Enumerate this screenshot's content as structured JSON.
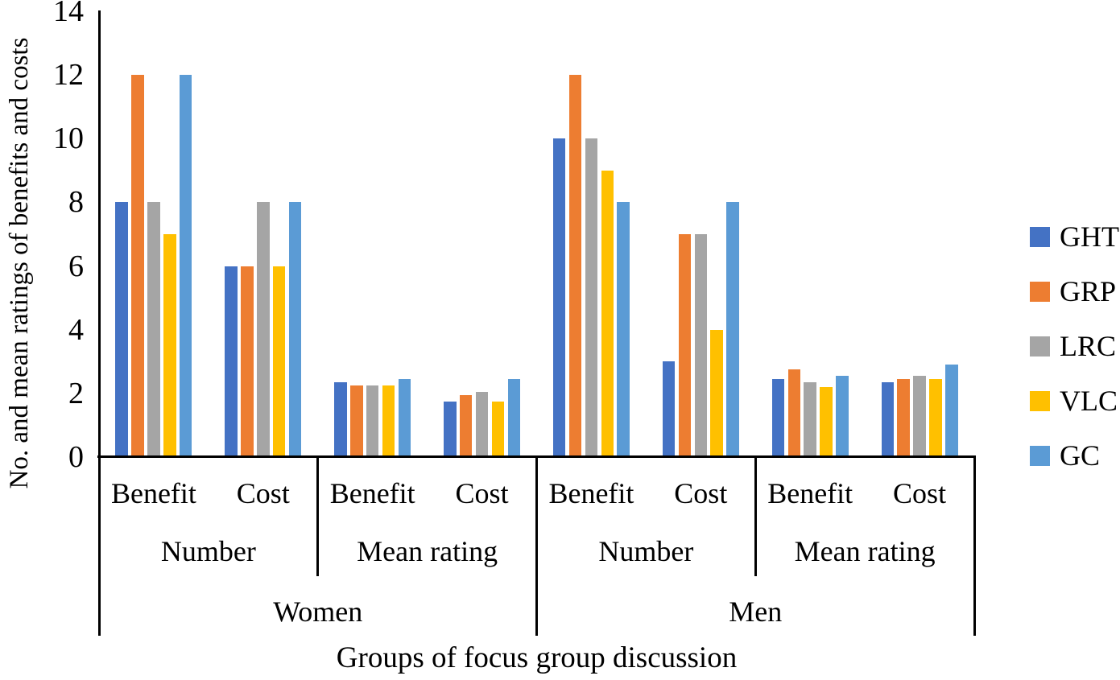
{
  "chart_data": {
    "type": "bar",
    "title": "",
    "ylabel": "No. and mean ratings of benefits and costs",
    "xlabel": "Groups of focus group discussion",
    "ylim": [
      0,
      14
    ],
    "yticks": [
      0,
      2,
      4,
      6,
      8,
      10,
      12,
      14
    ],
    "grid": false,
    "legend_position": "right-middle",
    "categories": {
      "level1": [
        "Benefit",
        "Cost",
        "Benefit",
        "Cost",
        "Benefit",
        "Cost",
        "Benefit",
        "Cost"
      ],
      "level2": [
        {
          "label": "Number",
          "span": 2
        },
        {
          "label": "Mean rating",
          "span": 2
        },
        {
          "label": "Number",
          "span": 2
        },
        {
          "label": "Mean rating",
          "span": 2
        }
      ],
      "level3": [
        {
          "label": "Women",
          "span": 4
        },
        {
          "label": "Men",
          "span": 4
        }
      ]
    },
    "series": [
      {
        "name": "GHT",
        "color": "#4472C4",
        "values": [
          8,
          6,
          2.35,
          1.75,
          10,
          3,
          2.45,
          2.35
        ]
      },
      {
        "name": "GRP",
        "color": "#ED7D31",
        "values": [
          12,
          6,
          2.25,
          1.95,
          12,
          7,
          2.75,
          2.45
        ]
      },
      {
        "name": "LRC",
        "color": "#A5A5A5",
        "values": [
          8,
          8,
          2.25,
          2.05,
          10,
          7,
          2.35,
          2.55
        ]
      },
      {
        "name": "VLC",
        "color": "#FFC000",
        "values": [
          7,
          6,
          2.25,
          1.75,
          9,
          4,
          2.2,
          2.45
        ]
      },
      {
        "name": "GC",
        "color": "#5B9BD5",
        "values": [
          12,
          8,
          2.45,
          2.45,
          8,
          8,
          2.55,
          2.9
        ]
      }
    ]
  }
}
